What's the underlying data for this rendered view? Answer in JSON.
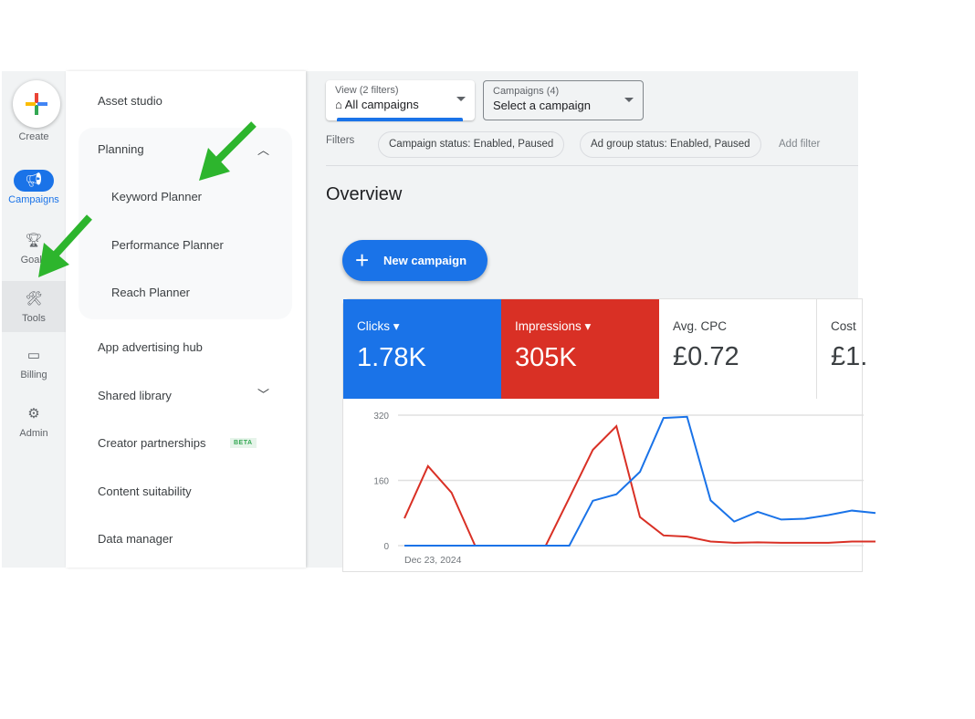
{
  "rail": {
    "create": "Create",
    "items": [
      {
        "label": "Campaigns",
        "icon": "megaphone-icon"
      },
      {
        "label": "Goals",
        "icon": "trophy-icon"
      },
      {
        "label": "Tools",
        "icon": "tools-icon"
      },
      {
        "label": "Billing",
        "icon": "credit-card-icon"
      },
      {
        "label": "Admin",
        "icon": "gear-icon"
      }
    ]
  },
  "nav": {
    "asset_studio": "Asset studio",
    "planning": "Planning",
    "planning_items": [
      "Keyword Planner",
      "Performance Planner",
      "Reach Planner"
    ],
    "app_hub": "App advertising hub",
    "shared_library": "Shared library",
    "creator": "Creator partnerships",
    "beta": "BETA",
    "content_suitability": "Content suitability",
    "data_manager": "Data manager"
  },
  "header": {
    "view_label": "View (2 filters)",
    "view_value": "All campaigns",
    "campaigns_label": "Campaigns (4)",
    "campaigns_value": "Select a campaign",
    "filters_label": "Filters",
    "chips": [
      "Campaign status: Enabled, Paused",
      "Ad group status: Enabled, Paused"
    ],
    "add_filter": "Add filter"
  },
  "overview": {
    "title": "Overview",
    "new_campaign": "New campaign",
    "metrics": [
      {
        "label": "Clicks",
        "value": "1.78K",
        "color": "#1a73e8"
      },
      {
        "label": "Impressions",
        "value": "305K",
        "color": "#d93025"
      },
      {
        "label": "Avg. CPC",
        "value": "£0.72"
      },
      {
        "label": "Cost",
        "value": "£1."
      }
    ]
  },
  "colors": {
    "accent": "#1a73e8",
    "impressions": "#d93025",
    "arrow": "#2db52d"
  },
  "chart_data": {
    "type": "line",
    "x_start_label": "Dec 23, 2024",
    "yticks": [
      0,
      160,
      320
    ],
    "ylim": [
      0,
      320
    ],
    "grid": true,
    "series": [
      {
        "name": "Clicks",
        "color": "#1a73e8",
        "values": [
          0,
          0,
          0,
          0,
          0,
          0,
          0,
          0,
          110,
          126,
          181,
          313,
          316,
          111,
          59,
          83,
          64,
          66,
          75,
          86,
          80
        ]
      },
      {
        "name": "Impressions",
        "color": "#d93025",
        "values": [
          67,
          195,
          130,
          0,
          0,
          0,
          0,
          117,
          235,
          293,
          70,
          25,
          22,
          10,
          7,
          8,
          7,
          7,
          7,
          10,
          10
        ]
      }
    ]
  }
}
